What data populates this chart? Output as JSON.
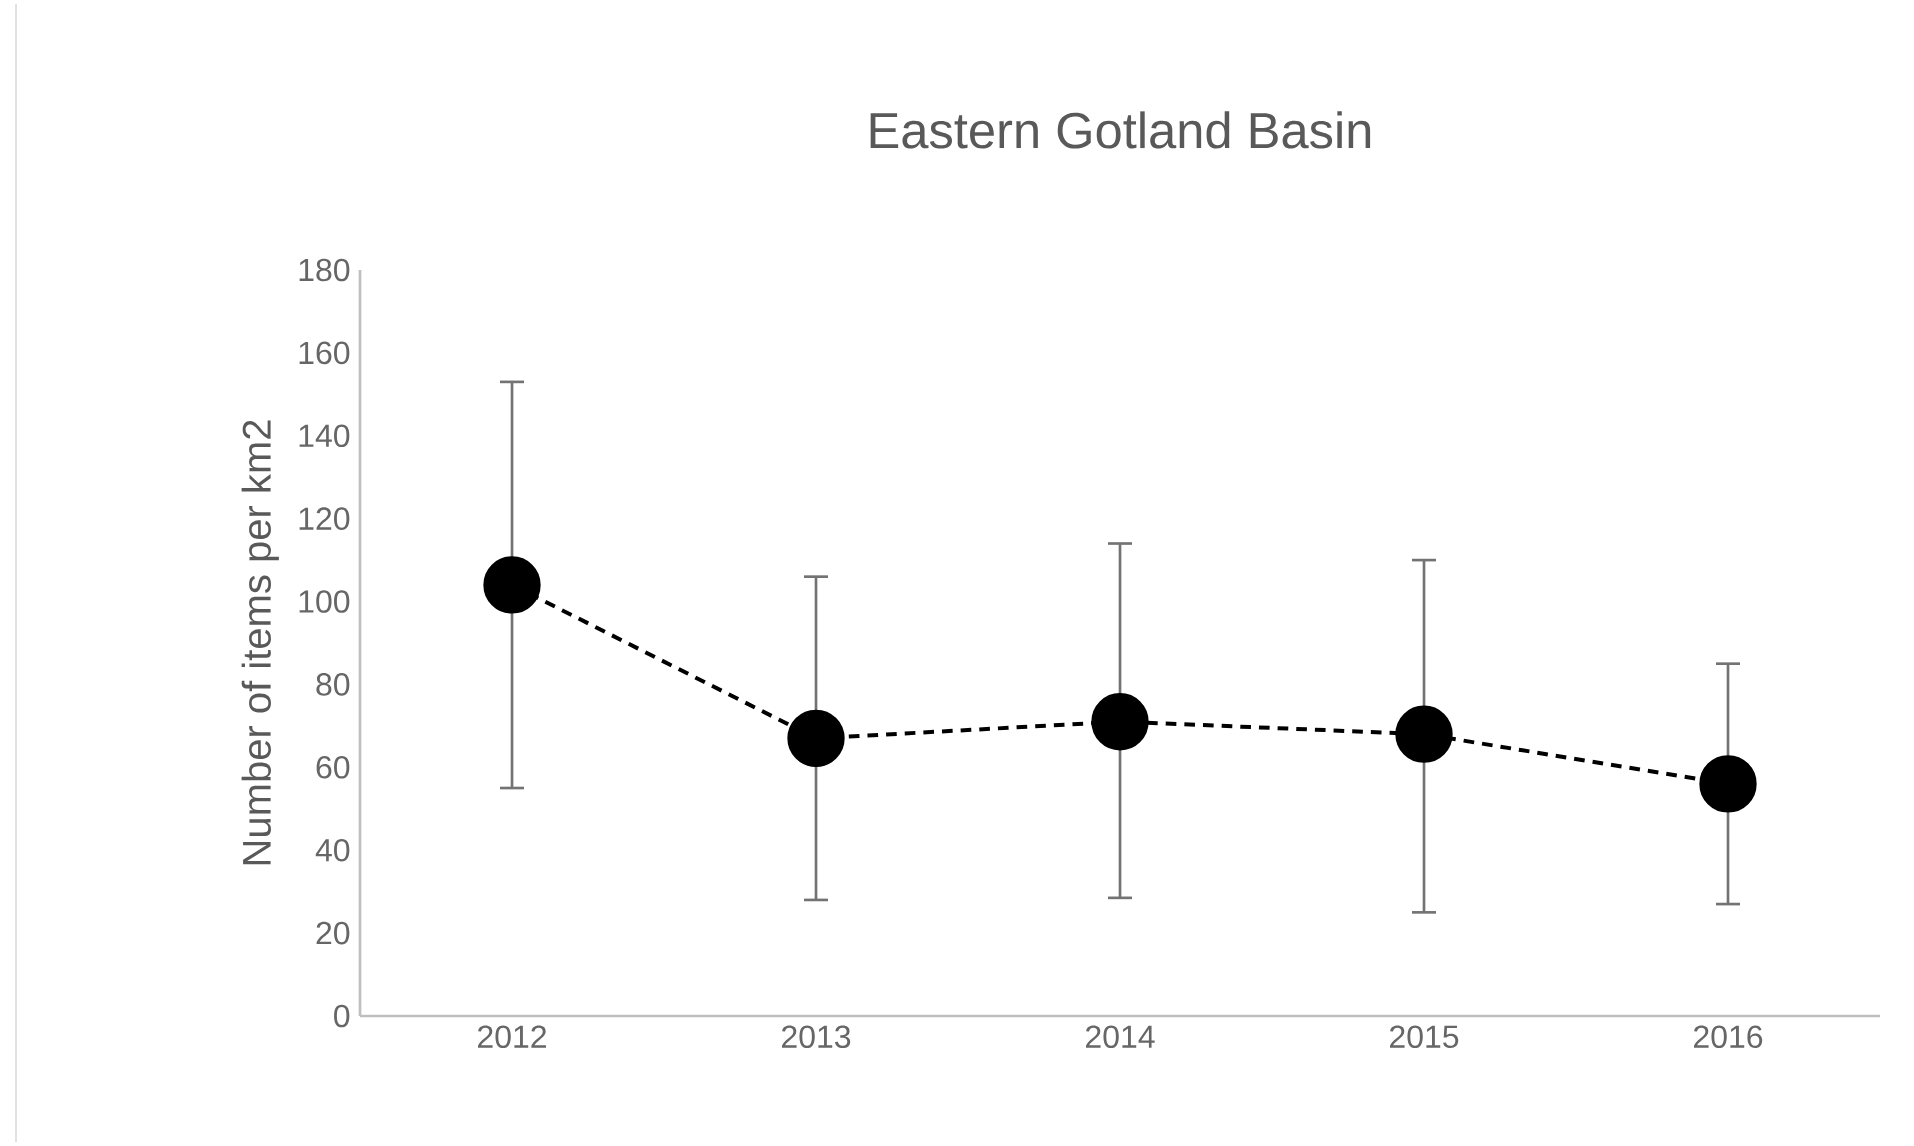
{
  "chart_data": {
    "type": "line",
    "title": "Eastern Gotland Basin",
    "ylabel": "Number of items per km2",
    "categories": [
      "2012",
      "2013",
      "2014",
      "2015",
      "2016"
    ],
    "series": [
      {
        "color": "#000000",
        "values": [
          104,
          67,
          71,
          68,
          56
        ],
        "errors": [
          [
            55,
            153
          ],
          [
            28,
            106
          ],
          [
            28.5,
            114
          ],
          [
            25,
            110
          ],
          [
            27,
            85
          ]
        ]
      }
    ],
    "ylim": [
      0,
      180
    ],
    "yticks": [
      0,
      20,
      40,
      60,
      80,
      100,
      120,
      140,
      160,
      180
    ],
    "grid": false,
    "marker": "circle",
    "line_style": "dashed"
  }
}
